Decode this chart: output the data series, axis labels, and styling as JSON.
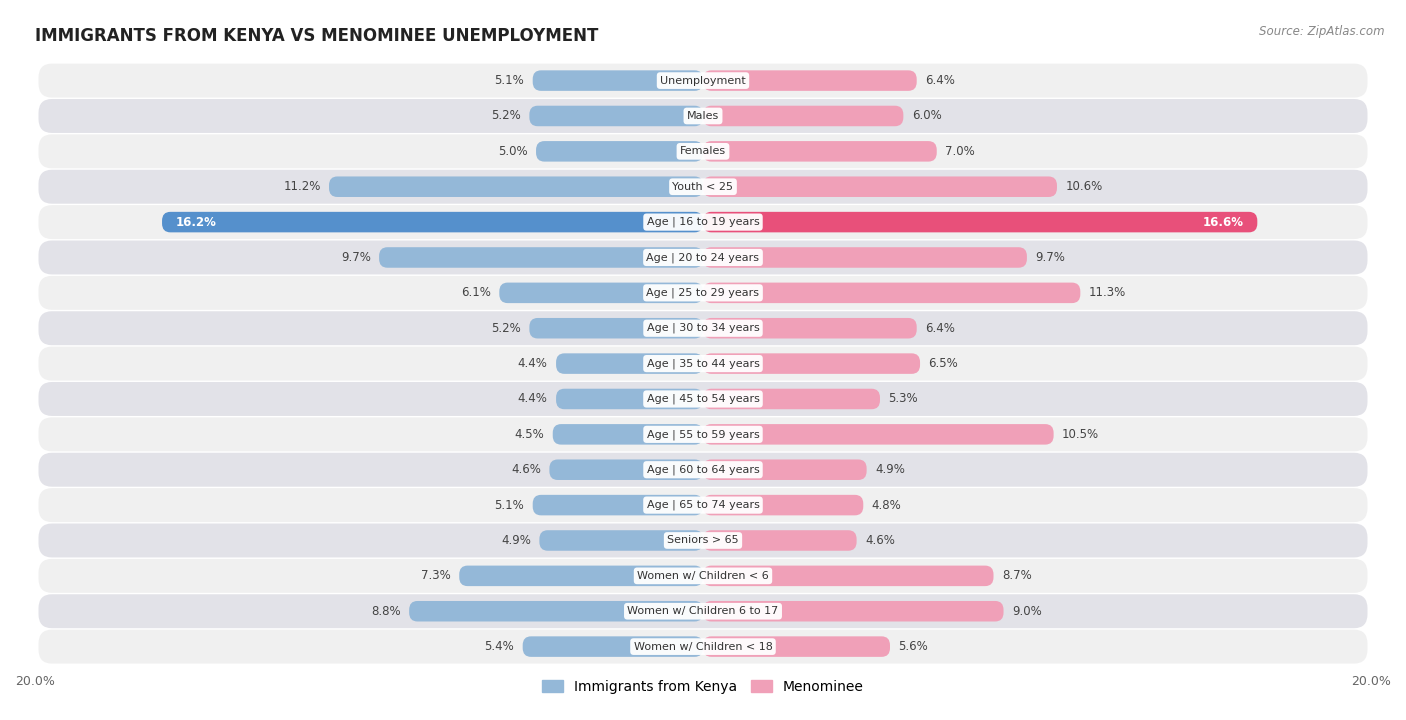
{
  "title": "IMMIGRANTS FROM KENYA VS MENOMINEE UNEMPLOYMENT",
  "source": "Source: ZipAtlas.com",
  "categories": [
    "Unemployment",
    "Males",
    "Females",
    "Youth < 25",
    "Age | 16 to 19 years",
    "Age | 20 to 24 years",
    "Age | 25 to 29 years",
    "Age | 30 to 34 years",
    "Age | 35 to 44 years",
    "Age | 45 to 54 years",
    "Age | 55 to 59 years",
    "Age | 60 to 64 years",
    "Age | 65 to 74 years",
    "Seniors > 65",
    "Women w/ Children < 6",
    "Women w/ Children 6 to 17",
    "Women w/ Children < 18"
  ],
  "kenya_values": [
    5.1,
    5.2,
    5.0,
    11.2,
    16.2,
    9.7,
    6.1,
    5.2,
    4.4,
    4.4,
    4.5,
    4.6,
    5.1,
    4.9,
    7.3,
    8.8,
    5.4
  ],
  "menominee_values": [
    6.4,
    6.0,
    7.0,
    10.6,
    16.6,
    9.7,
    11.3,
    6.4,
    6.5,
    5.3,
    10.5,
    4.9,
    4.8,
    4.6,
    8.7,
    9.0,
    5.6
  ],
  "kenya_color": "#94b8d8",
  "menominee_color": "#f0a0b8",
  "kenya_highlight_color": "#5590cc",
  "menominee_highlight_color": "#e8507a",
  "highlight_row": 4,
  "xlim": 20.0,
  "bar_height": 0.58,
  "row_bg_light": "#f0f0f0",
  "row_bg_dark": "#e2e2e8",
  "label_fontsize": 8.0,
  "title_fontsize": 12,
  "value_fontsize": 8.5,
  "legend_fontsize": 10
}
